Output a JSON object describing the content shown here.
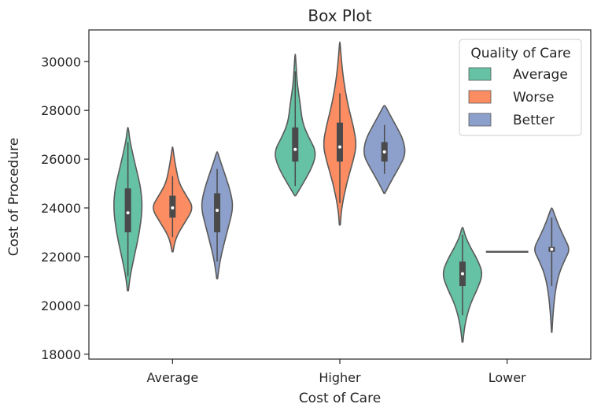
{
  "chart_data": {
    "type": "violin",
    "title": "Box Plot",
    "xlabel": "Cost of Care",
    "ylabel": "Cost of Procedure",
    "categories": [
      "Average",
      "Higher",
      "Lower"
    ],
    "ylim": [
      17800,
      31300
    ],
    "yticks": [
      18000,
      20000,
      22000,
      24000,
      26000,
      28000,
      30000
    ],
    "ytick_labels": [
      "18000",
      "20000",
      "22000",
      "24000",
      "26000",
      "28000",
      "30000"
    ],
    "grid": false,
    "legend": {
      "title": "Quality of Care",
      "placement": "top-right",
      "entries": [
        "Average",
        "Worse",
        "Better"
      ]
    },
    "series": [
      {
        "name": "Average",
        "color": "#66c2a5",
        "distributions": [
          {
            "category": "Average",
            "min": 20600,
            "q1": 23000,
            "median": 23800,
            "q3": 24800,
            "max": 27300,
            "whisker_low": 21200,
            "whisker_high": 26700,
            "profile": [
              [
                20600,
                0.02
              ],
              [
                21200,
                0.1
              ],
              [
                22000,
                0.28
              ],
              [
                23000,
                0.52
              ],
              [
                24000,
                0.65
              ],
              [
                24800,
                0.58
              ],
              [
                25500,
                0.4
              ],
              [
                26200,
                0.22
              ],
              [
                26800,
                0.08
              ],
              [
                27300,
                0.02
              ]
            ]
          },
          {
            "category": "Higher",
            "min": 24500,
            "q1": 25900,
            "median": 26400,
            "q3": 27300,
            "max": 30300,
            "whisker_low": 24900,
            "whisker_high": 29600,
            "profile": [
              [
                24500,
                0.02
              ],
              [
                25000,
                0.35
              ],
              [
                25700,
                0.78
              ],
              [
                26300,
                0.95
              ],
              [
                26900,
                0.6
              ],
              [
                27500,
                0.32
              ],
              [
                28300,
                0.22
              ],
              [
                29000,
                0.1
              ],
              [
                29700,
                0.05
              ],
              [
                30300,
                0.01
              ]
            ]
          },
          {
            "category": "Lower",
            "min": 18500,
            "q1": 20800,
            "median": 21300,
            "q3": 21800,
            "max": 23200,
            "whisker_low": 19600,
            "whisker_high": 22900,
            "profile": [
              [
                18500,
                0.02
              ],
              [
                19200,
                0.1
              ],
              [
                20000,
                0.32
              ],
              [
                20700,
                0.68
              ],
              [
                21300,
                0.92
              ],
              [
                21900,
                0.66
              ],
              [
                22400,
                0.34
              ],
              [
                22900,
                0.1
              ],
              [
                23200,
                0.03
              ]
            ]
          }
        ]
      },
      {
        "name": "Worse",
        "color": "#fc8d62",
        "distributions": [
          {
            "category": "Average",
            "min": 22200,
            "q1": 23600,
            "median": 24000,
            "q3": 24500,
            "max": 26500,
            "whisker_low": 22800,
            "whisker_high": 25300,
            "profile": [
              [
                22200,
                0.02
              ],
              [
                22800,
                0.15
              ],
              [
                23400,
                0.55
              ],
              [
                24000,
                0.95
              ],
              [
                24500,
                0.62
              ],
              [
                25000,
                0.3
              ],
              [
                25600,
                0.16
              ],
              [
                26100,
                0.07
              ],
              [
                26500,
                0.01
              ]
            ]
          },
          {
            "category": "Higher",
            "min": 23300,
            "q1": 25900,
            "median": 26500,
            "q3": 27500,
            "max": 30800,
            "whisker_low": 24200,
            "whisker_high": 28700,
            "profile": [
              [
                23300,
                0.02
              ],
              [
                24000,
                0.08
              ],
              [
                25000,
                0.3
              ],
              [
                26000,
                0.62
              ],
              [
                26600,
                0.75
              ],
              [
                27300,
                0.62
              ],
              [
                28000,
                0.42
              ],
              [
                28800,
                0.24
              ],
              [
                29600,
                0.12
              ],
              [
                30300,
                0.05
              ],
              [
                30800,
                0.01
              ]
            ]
          },
          {
            "category": "Lower",
            "min": 22200,
            "q1": 22200,
            "median": 22200,
            "q3": 22200,
            "max": 22200,
            "whisker_low": 22200,
            "whisker_high": 22200,
            "profile": []
          }
        ]
      },
      {
        "name": "Better",
        "color": "#8da0cb",
        "distributions": [
          {
            "category": "Average",
            "min": 21100,
            "q1": 23000,
            "median": 23900,
            "q3": 24600,
            "max": 26300,
            "whisker_low": 21800,
            "whisker_high": 25600,
            "profile": [
              [
                21100,
                0.02
              ],
              [
                21800,
                0.12
              ],
              [
                22500,
                0.3
              ],
              [
                23200,
                0.5
              ],
              [
                24000,
                0.72
              ],
              [
                24600,
                0.62
              ],
              [
                25300,
                0.38
              ],
              [
                25900,
                0.15
              ],
              [
                26300,
                0.02
              ]
            ]
          },
          {
            "category": "Higher",
            "min": 24600,
            "q1": 25900,
            "median": 26300,
            "q3": 26700,
            "max": 28200,
            "whisker_low": 25400,
            "whisker_high": 27400,
            "profile": [
              [
                24600,
                0.02
              ],
              [
                25100,
                0.3
              ],
              [
                25700,
                0.68
              ],
              [
                26200,
                0.95
              ],
              [
                26800,
                0.85
              ],
              [
                27400,
                0.5
              ],
              [
                27900,
                0.2
              ],
              [
                28200,
                0.03
              ]
            ]
          },
          {
            "category": "Lower",
            "min": 18900,
            "q1": 22200,
            "median": 22300,
            "q3": 22400,
            "max": 24000,
            "whisker_low": 20800,
            "whisker_high": 23600,
            "profile": [
              [
                18900,
                0.01
              ],
              [
                19700,
                0.06
              ],
              [
                20600,
                0.16
              ],
              [
                21300,
                0.32
              ],
              [
                21900,
                0.6
              ],
              [
                22300,
                0.82
              ],
              [
                22800,
                0.55
              ],
              [
                23300,
                0.3
              ],
              [
                23700,
                0.14
              ],
              [
                24000,
                0.02
              ]
            ]
          }
        ]
      }
    ]
  }
}
